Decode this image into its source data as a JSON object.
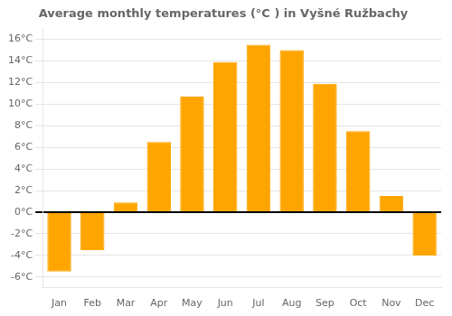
{
  "chart_data": {
    "type": "bar",
    "title": "Average monthly temperatures (°C ) in Vyšné Ružbachy",
    "categories": [
      "Jan",
      "Feb",
      "Mar",
      "Apr",
      "May",
      "Jun",
      "Jul",
      "Aug",
      "Sep",
      "Oct",
      "Nov",
      "Dec"
    ],
    "values": [
      -5.5,
      -3.5,
      0.9,
      6.5,
      10.7,
      13.9,
      15.5,
      15.0,
      11.9,
      7.5,
      1.5,
      -4.0
    ],
    "color": "#FFA500",
    "ylim": [
      -7,
      17
    ],
    "yticks": [
      {
        "value": -6,
        "label": "-6°C"
      },
      {
        "value": -4,
        "label": "-4°C"
      },
      {
        "value": -2,
        "label": "-2°C"
      },
      {
        "value": 0,
        "label": "0°C"
      },
      {
        "value": 2,
        "label": "2°C"
      },
      {
        "value": 4,
        "label": "4°C"
      },
      {
        "value": 6,
        "label": "6°C"
      },
      {
        "value": 8,
        "label": "8°C"
      },
      {
        "value": 10,
        "label": "10°C"
      },
      {
        "value": 12,
        "label": "12°C"
      },
      {
        "value": 14,
        "label": "14°C"
      },
      {
        "value": 16,
        "label": "16°C"
      }
    ],
    "grid": true
  }
}
